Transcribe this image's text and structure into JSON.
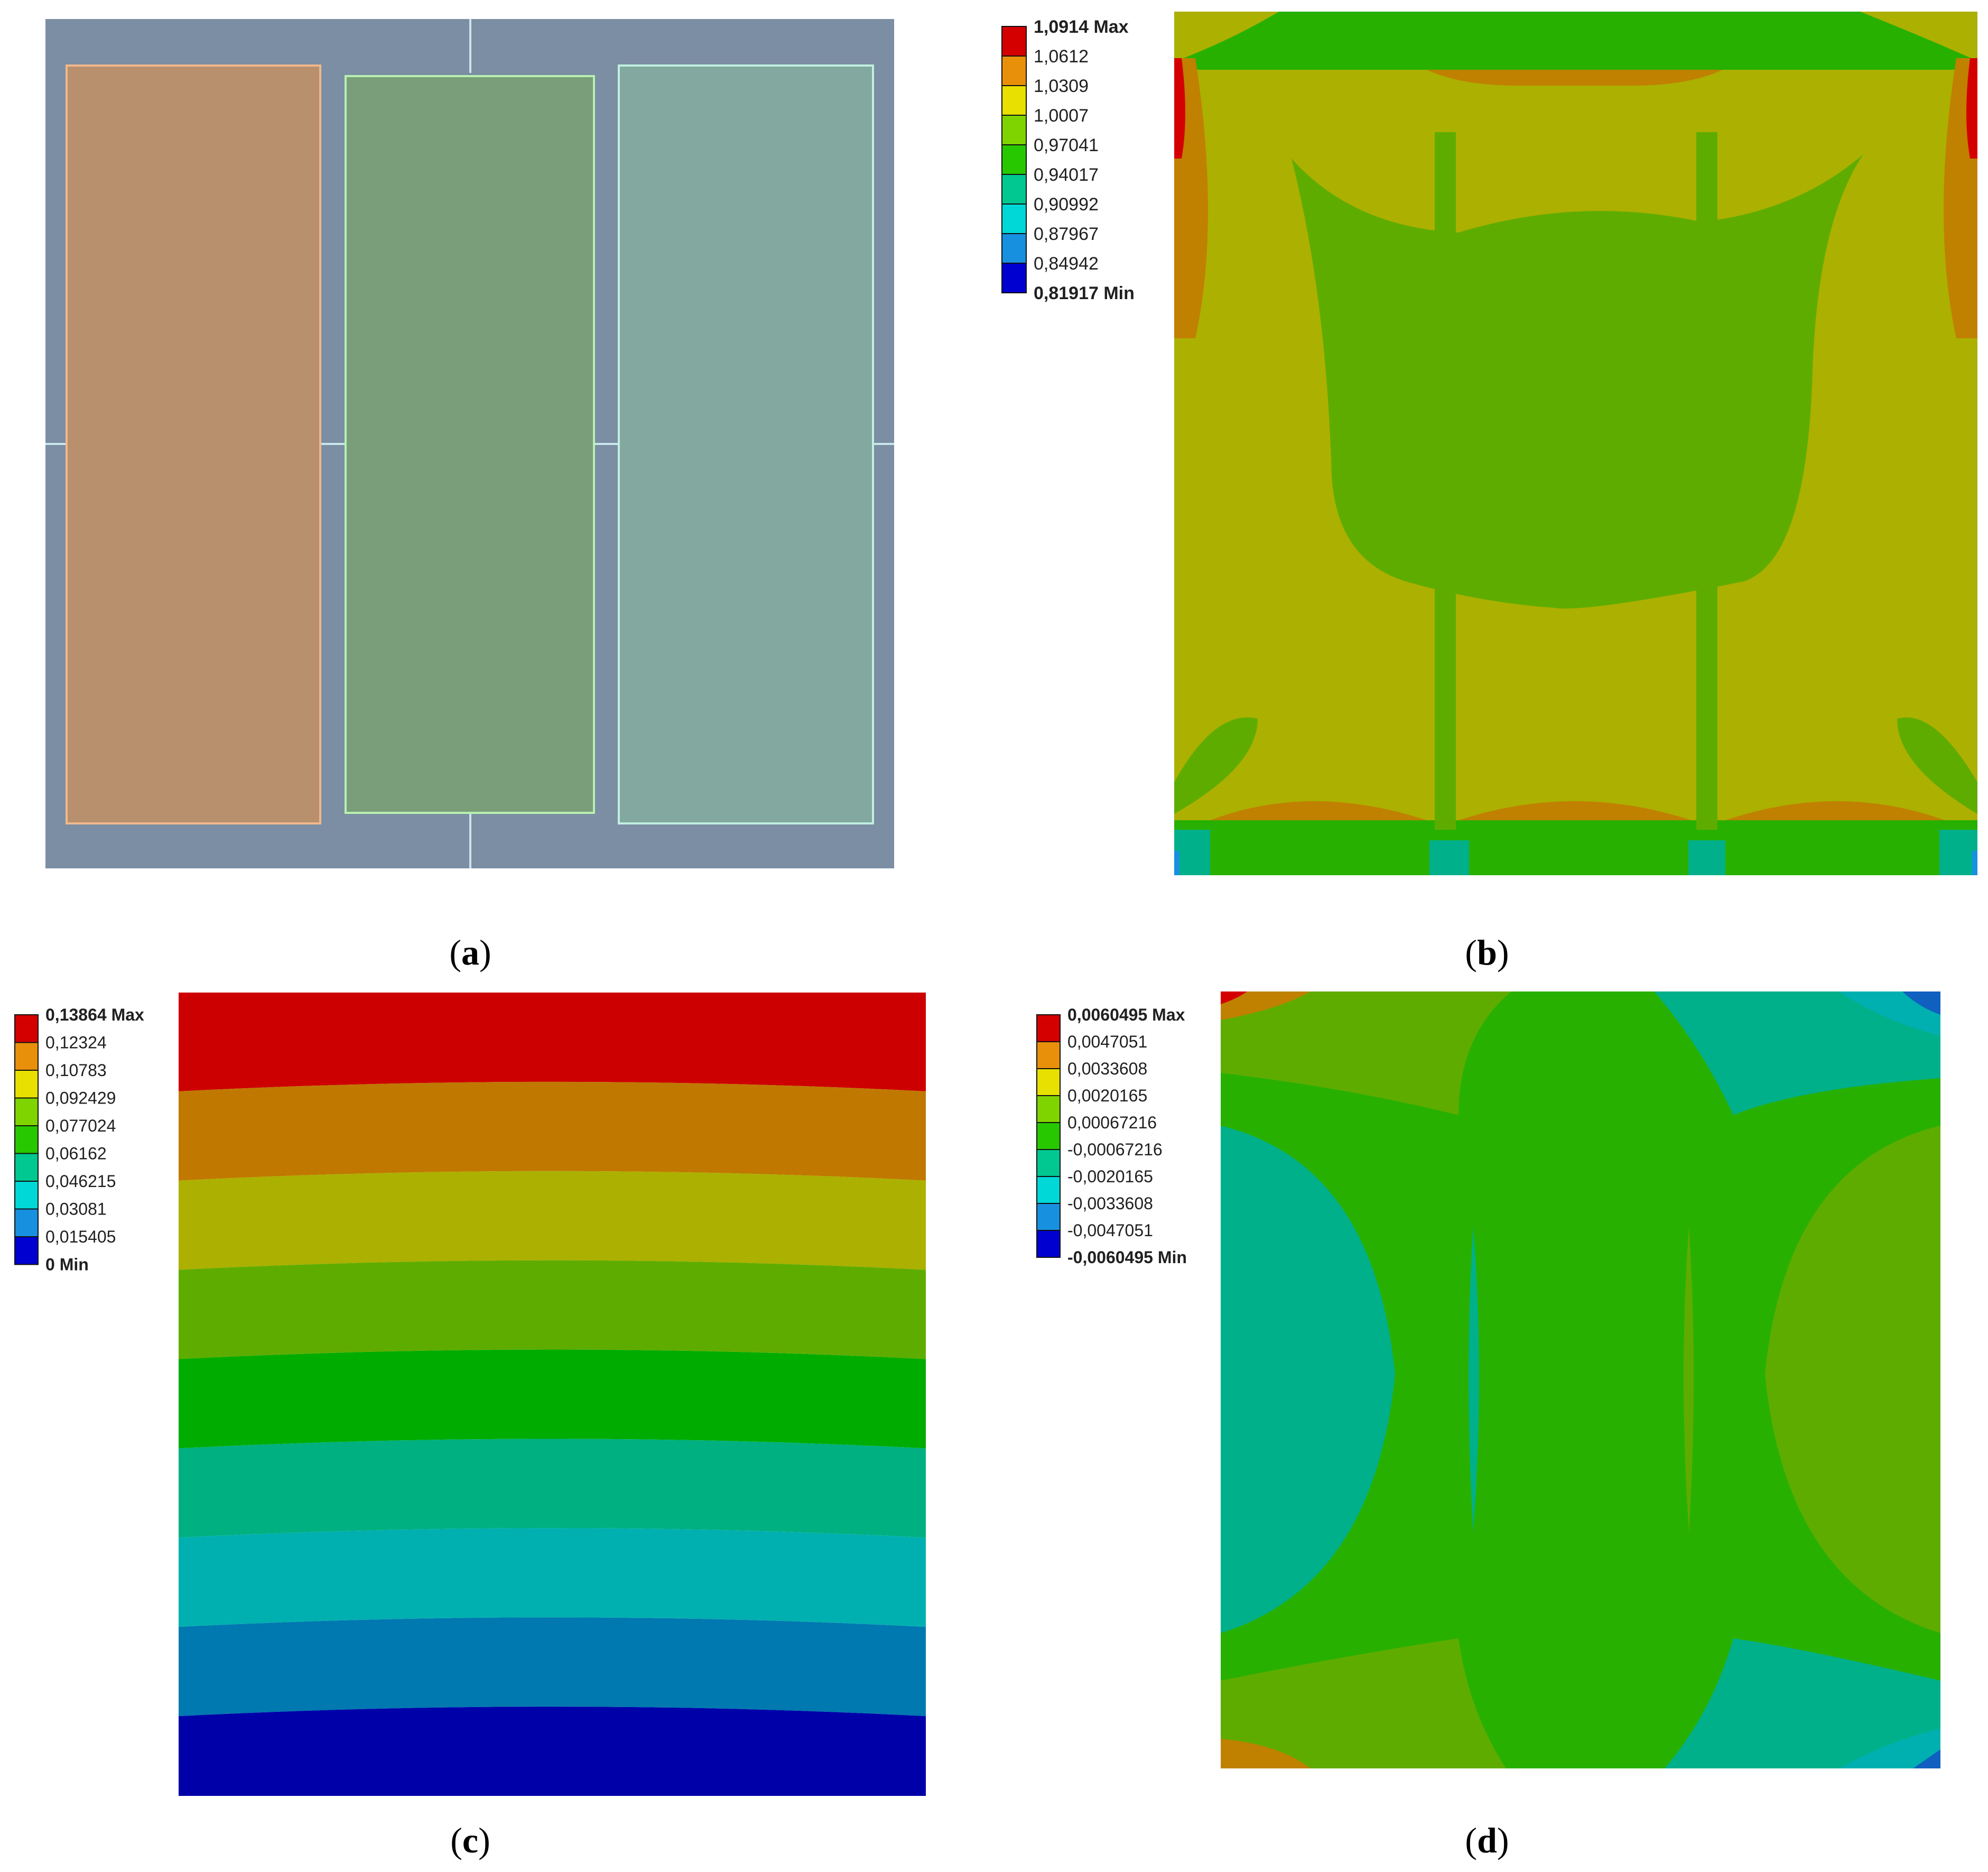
{
  "panels": {
    "a": {
      "caption": "a"
    },
    "b": {
      "caption": "b",
      "legend": [
        "1,0914 Max",
        "1,0612",
        "1,0309",
        "1,0007",
        "0,97041",
        "0,94017",
        "0,90992",
        "0,87967",
        "0,84942",
        "0,81917 Min"
      ]
    },
    "c": {
      "caption": "c",
      "legend": [
        "0,13864 Max",
        "0,12324",
        "0,10783",
        "0,092429",
        "0,077024",
        "0,06162",
        "0,046215",
        "0,03081",
        "0,015405",
        "0 Min"
      ]
    },
    "d": {
      "caption": "d",
      "legend": [
        "0,0060495 Max",
        "0,0047051",
        "0,0033608",
        "0,0020165",
        "0,00067216",
        "-0,00067216",
        "-0,0020165",
        "-0,0033608",
        "-0,0047051",
        "-0,0060495 Min"
      ]
    }
  },
  "colors": {
    "scale": [
      "#d40000",
      "#e8900a",
      "#e8e000",
      "#7fd400",
      "#28c800",
      "#00c890",
      "#00d8d8",
      "#1890e0",
      "#0000d0"
    ],
    "a_background": "#7b8ea3",
    "a_block_left": "#b8906e",
    "a_block_mid": "#7a9e7a",
    "a_block_right": "#82a8a0"
  }
}
